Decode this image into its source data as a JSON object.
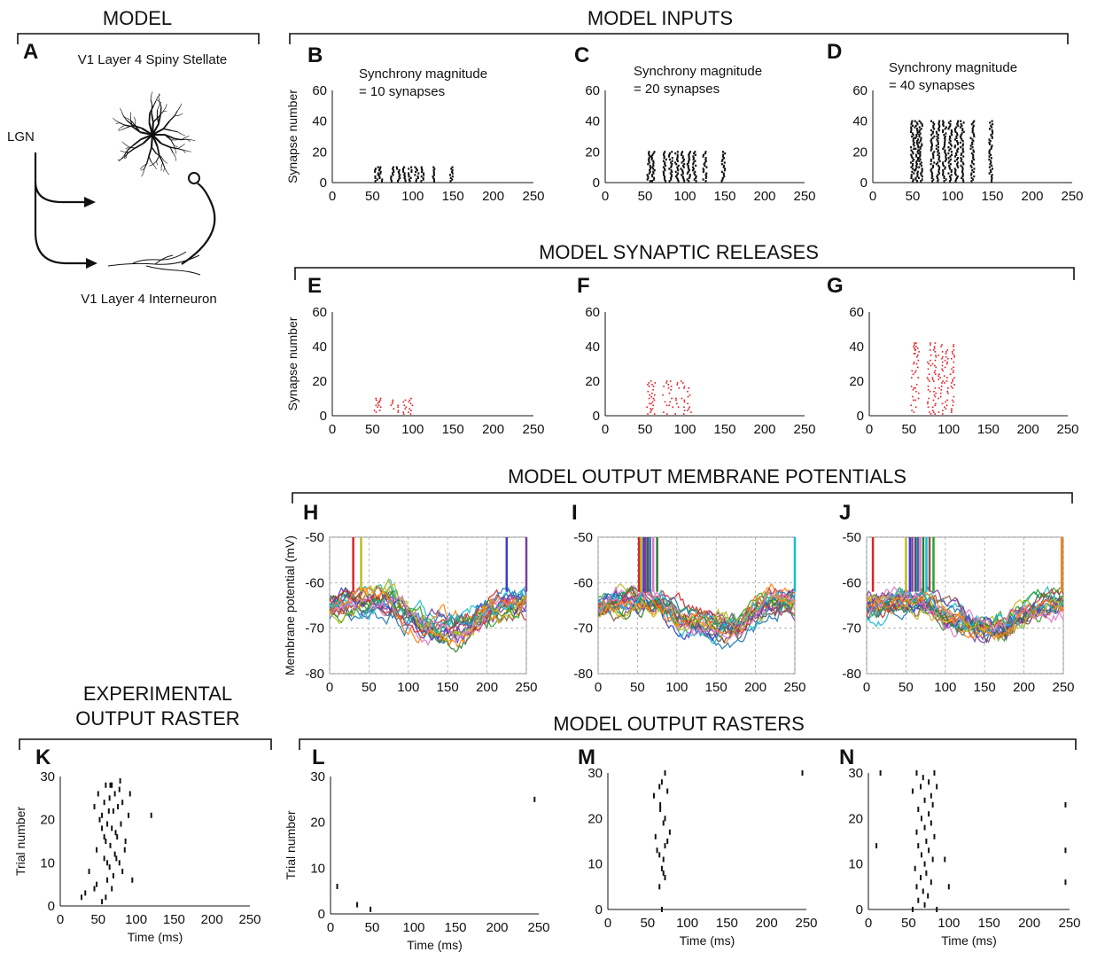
{
  "sections": {
    "model": "MODEL",
    "inputs": "MODEL INPUTS",
    "releases": "MODEL SYNAPTIC RELEASES",
    "membrane": "MODEL OUTPUT MEMBRANE POTENTIALS",
    "experimental_line1": "EXPERIMENTAL",
    "experimental_line2": "OUTPUT RASTER",
    "rasters": "MODEL OUTPUT RASTERS"
  },
  "panel_a": {
    "letter": "A",
    "stellate_label": "V1 Layer 4 Spiny Stellate",
    "lgn_label": "LGN",
    "interneuron_label": "V1 Layer 4 Interneuron"
  },
  "axis_labels": {
    "synapse_number": "Synapse number",
    "membrane_potential": "Membrane potential (mV)",
    "trial_number": "Trial number",
    "time": "Time (ms)"
  },
  "synchrony_notes": {
    "B": [
      "Synchrony magnitude",
      "= 10 synapses"
    ],
    "C": [
      "Synchrony magnitude",
      "= 20 synapses"
    ],
    "D": [
      "Synchrony magnitude",
      "= 40 synapses"
    ]
  },
  "series_colors": [
    "#d62728",
    "#1f77b4",
    "#2ca02c",
    "#7b3fa0",
    "#17becf",
    "#bcbd22",
    "#e377c2",
    "#ff7f0e",
    "#555555",
    "#8c564b",
    "#3b3bd0",
    "#2e7d32"
  ],
  "chart_data": [
    {
      "panel": "B",
      "type": "scatter",
      "marker": "tick",
      "color": "#111111",
      "xlim": [
        0,
        250
      ],
      "ylim": [
        0,
        60
      ],
      "xticks": [
        0,
        50,
        100,
        150,
        200,
        250
      ],
      "yticks": [
        0,
        20,
        40,
        60
      ],
      "ylabel": "Synapse number",
      "synchrony": 10,
      "event_times": [
        55,
        60,
        75,
        82,
        90,
        97,
        105,
        112,
        125,
        148
      ]
    },
    {
      "panel": "C",
      "type": "scatter",
      "marker": "tick",
      "color": "#111111",
      "xlim": [
        0,
        250
      ],
      "ylim": [
        0,
        60
      ],
      "xticks": [
        0,
        50,
        100,
        150,
        200,
        250
      ],
      "yticks": [
        0,
        20,
        40,
        60
      ],
      "synchrony": 20,
      "event_times": [
        55,
        60,
        75,
        82,
        90,
        97,
        105,
        112,
        125,
        148
      ]
    },
    {
      "panel": "D",
      "type": "scatter",
      "marker": "tick",
      "color": "#111111",
      "xlim": [
        0,
        250
      ],
      "ylim": [
        0,
        60
      ],
      "xticks": [
        0,
        50,
        100,
        150,
        200,
        250
      ],
      "yticks": [
        0,
        20,
        40,
        60
      ],
      "synchrony": 40,
      "event_times": [
        50,
        55,
        60,
        75,
        82,
        90,
        97,
        105,
        112,
        125,
        148
      ]
    },
    {
      "panel": "E",
      "type": "scatter",
      "marker": "dot",
      "color": "#e8141a",
      "xlim": [
        0,
        250
      ],
      "ylim": [
        0,
        60
      ],
      "xticks": [
        0,
        50,
        100,
        150,
        200,
        250
      ],
      "yticks": [
        0,
        20,
        40,
        60
      ],
      "ylabel": "Synapse number",
      "release_times": [
        55,
        60,
        75,
        82,
        90,
        97
      ],
      "max_synapse": 10
    },
    {
      "panel": "F",
      "type": "scatter",
      "marker": "dot",
      "color": "#e8141a",
      "xlim": [
        0,
        250
      ],
      "ylim": [
        0,
        60
      ],
      "xticks": [
        0,
        50,
        100,
        150,
        200,
        250
      ],
      "yticks": [
        0,
        20,
        40,
        60
      ],
      "release_times": [
        55,
        60,
        75,
        82,
        90,
        97,
        105
      ],
      "max_synapse": 20
    },
    {
      "panel": "G",
      "type": "scatter",
      "marker": "dot",
      "color": "#e8141a",
      "xlim": [
        0,
        250
      ],
      "ylim": [
        0,
        60
      ],
      "xticks": [
        0,
        50,
        100,
        150,
        200,
        250
      ],
      "yticks": [
        0,
        20,
        40,
        60
      ],
      "release_times": [
        55,
        60,
        75,
        82,
        90,
        97,
        105
      ],
      "max_synapse": 42
    },
    {
      "panel": "H",
      "type": "line",
      "xlim": [
        0,
        250
      ],
      "ylim": [
        -80,
        -50
      ],
      "xticks": [
        0,
        50,
        100,
        150,
        200,
        250
      ],
      "yticks": [
        -80,
        -70,
        -60,
        -50
      ],
      "ylabel": "Membrane potential (mV)",
      "grid": true,
      "n_traces": 20,
      "spike_times": [
        30,
        40,
        225,
        250
      ]
    },
    {
      "panel": "I",
      "type": "line",
      "xlim": [
        0,
        250
      ],
      "ylim": [
        -80,
        -50
      ],
      "xticks": [
        0,
        50,
        100,
        150,
        200,
        250
      ],
      "yticks": [
        -80,
        -70,
        -60,
        -50
      ],
      "grid": true,
      "n_traces": 20,
      "spike_times": [
        52,
        55,
        58,
        60,
        63,
        66,
        70,
        75,
        250
      ]
    },
    {
      "panel": "J",
      "type": "line",
      "xlim": [
        0,
        250
      ],
      "ylim": [
        -80,
        -50
      ],
      "xticks": [
        0,
        50,
        100,
        150,
        200,
        250
      ],
      "yticks": [
        -80,
        -70,
        -60,
        -50
      ],
      "grid": true,
      "n_traces": 20,
      "spike_times": [
        8,
        50,
        55,
        58,
        62,
        65,
        68,
        72,
        76,
        80,
        85,
        248
      ]
    },
    {
      "panel": "K",
      "type": "scatter",
      "marker": "tick",
      "color": "#111111",
      "xlim": [
        0,
        250
      ],
      "ylim": [
        0,
        30
      ],
      "xticks": [
        0,
        50,
        100,
        150,
        200,
        250
      ],
      "yticks": [
        0,
        10,
        20,
        30
      ],
      "xlabel": "Time (ms)",
      "ylabel": "Trial number",
      "points": [
        [
          28,
          2
        ],
        [
          33,
          3
        ],
        [
          38,
          8
        ],
        [
          45,
          4
        ],
        [
          48,
          5
        ],
        [
          55,
          1
        ],
        [
          60,
          2
        ],
        [
          62,
          6
        ],
        [
          65,
          9
        ],
        [
          58,
          11
        ],
        [
          70,
          7
        ],
        [
          72,
          12
        ],
        [
          66,
          14
        ],
        [
          60,
          15
        ],
        [
          75,
          16
        ],
        [
          68,
          18
        ],
        [
          62,
          19
        ],
        [
          80,
          19
        ],
        [
          55,
          21
        ],
        [
          70,
          22
        ],
        [
          76,
          23
        ],
        [
          58,
          24
        ],
        [
          65,
          25
        ],
        [
          72,
          26
        ],
        [
          78,
          27
        ],
        [
          60,
          28
        ],
        [
          68,
          28
        ],
        [
          82,
          24
        ],
        [
          90,
          21
        ],
        [
          85,
          13
        ],
        [
          78,
          10
        ],
        [
          95,
          6
        ],
        [
          120,
          21
        ],
        [
          45,
          23
        ],
        [
          52,
          20
        ],
        [
          73,
          17
        ],
        [
          58,
          16
        ],
        [
          64,
          22
        ],
        [
          79,
          29
        ],
        [
          66,
          28
        ],
        [
          50,
          26
        ],
        [
          74,
          11
        ],
        [
          82,
          8
        ],
        [
          86,
          15
        ],
        [
          62,
          10
        ],
        [
          68,
          4
        ],
        [
          92,
          26
        ],
        [
          55,
          18
        ],
        [
          48,
          13
        ]
      ]
    },
    {
      "panel": "L",
      "type": "scatter",
      "marker": "tick",
      "color": "#111111",
      "xlim": [
        0,
        250
      ],
      "ylim": [
        0,
        30
      ],
      "xticks": [
        0,
        50,
        100,
        150,
        200,
        250
      ],
      "yticks": [
        0,
        10,
        20,
        30
      ],
      "xlabel": "Time (ms)",
      "ylabel": "Trial number",
      "points": [
        [
          8,
          6
        ],
        [
          32,
          2
        ],
        [
          48,
          1
        ],
        [
          245,
          25
        ]
      ]
    },
    {
      "panel": "M",
      "type": "scatter",
      "marker": "tick",
      "color": "#111111",
      "xlim": [
        0,
        250
      ],
      "ylim": [
        0,
        30
      ],
      "xticks": [
        0,
        50,
        100,
        150,
        200,
        250
      ],
      "yticks": [
        0,
        10,
        20,
        30
      ],
      "xlabel": "Time (ms)",
      "points": [
        [
          72,
          30
        ],
        [
          68,
          28
        ],
        [
          65,
          27
        ],
        [
          75,
          26
        ],
        [
          58,
          25
        ],
        [
          66,
          23
        ],
        [
          72,
          20
        ],
        [
          70,
          19
        ],
        [
          78,
          17
        ],
        [
          60,
          16
        ],
        [
          75,
          15
        ],
        [
          72,
          14
        ],
        [
          62,
          13
        ],
        [
          65,
          12
        ],
        [
          70,
          11
        ],
        [
          68,
          9
        ],
        [
          72,
          7
        ],
        [
          65,
          5
        ],
        [
          68,
          0
        ],
        [
          245,
          30
        ],
        [
          66,
          22
        ],
        [
          70,
          8
        ]
      ]
    },
    {
      "panel": "N",
      "type": "scatter",
      "marker": "tick",
      "color": "#111111",
      "xlim": [
        0,
        250
      ],
      "ylim": [
        0,
        30
      ],
      "xticks": [
        0,
        50,
        100,
        150,
        200,
        250
      ],
      "yticks": [
        0,
        10,
        20,
        30
      ],
      "xlabel": "Time (ms)",
      "points": [
        [
          15,
          30
        ],
        [
          60,
          30
        ],
        [
          82,
          30
        ],
        [
          68,
          29
        ],
        [
          75,
          28
        ],
        [
          65,
          27
        ],
        [
          85,
          27
        ],
        [
          55,
          26
        ],
        [
          78,
          25
        ],
        [
          70,
          24
        ],
        [
          80,
          23
        ],
        [
          62,
          22
        ],
        [
          75,
          21
        ],
        [
          66,
          20
        ],
        [
          78,
          19
        ],
        [
          70,
          18
        ],
        [
          60,
          17
        ],
        [
          82,
          16
        ],
        [
          72,
          15
        ],
        [
          62,
          14
        ],
        [
          75,
          13
        ],
        [
          66,
          12
        ],
        [
          80,
          11
        ],
        [
          70,
          10
        ],
        [
          58,
          9
        ],
        [
          72,
          8
        ],
        [
          65,
          7
        ],
        [
          78,
          6
        ],
        [
          60,
          5
        ],
        [
          68,
          4
        ],
        [
          74,
          3
        ],
        [
          62,
          2
        ],
        [
          70,
          1
        ],
        [
          55,
          0
        ],
        [
          85,
          0
        ],
        [
          10,
          14
        ],
        [
          95,
          11
        ],
        [
          100,
          5
        ],
        [
          245,
          23
        ],
        [
          245,
          13
        ],
        [
          245,
          6
        ]
      ]
    }
  ]
}
